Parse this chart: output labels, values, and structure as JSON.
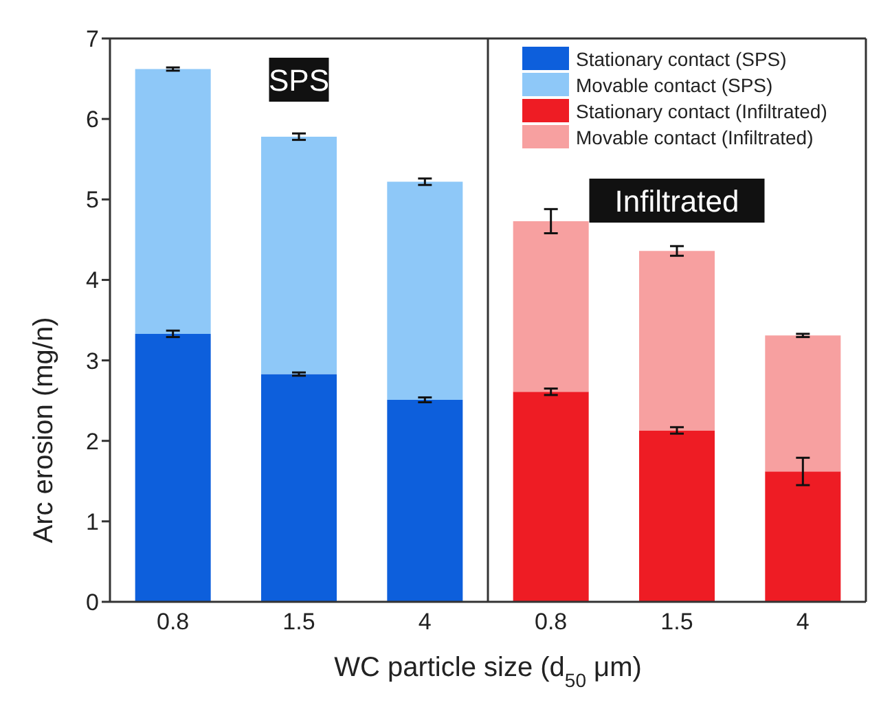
{
  "chart_data": {
    "type": "bar",
    "stacked": true,
    "xlabel": "WC particle size (d$_{50}$ μm)",
    "ylabel": "Arc erosion (mg/n)",
    "categories": [
      "0.8",
      "1.5",
      "4",
      "0.8",
      "1.5",
      "4"
    ],
    "series": [
      {
        "name": "Stationary contact (SPS)",
        "color": "#0d5fdc",
        "values": [
          3.33,
          2.83,
          2.51,
          null,
          null,
          null
        ],
        "errors": [
          0.04,
          0.02,
          0.03,
          null,
          null,
          null
        ]
      },
      {
        "name": "Movable contact (SPS)",
        "color": "#8ec8f8",
        "values": [
          3.29,
          2.95,
          2.71,
          null,
          null,
          null
        ],
        "errors": [
          0.02,
          0.04,
          0.04,
          null,
          null,
          null
        ]
      },
      {
        "name": "Stationary contact (Infiltrated)",
        "color": "#ee1c24",
        "values": [
          null,
          null,
          null,
          2.61,
          2.13,
          1.62
        ],
        "errors": [
          null,
          null,
          null,
          0.04,
          0.04,
          0.17
        ]
      },
      {
        "name": "Movable contact (Infiltrated)",
        "color": "#f7a0a0",
        "values": [
          null,
          null,
          null,
          2.12,
          2.23,
          1.69
        ],
        "errors": [
          null,
          null,
          null,
          0.15,
          0.06,
          0.02
        ]
      }
    ],
    "ylim": [
      0,
      7
    ],
    "yticks": [
      0,
      1,
      2,
      3,
      4,
      5,
      6,
      7
    ],
    "legend": "top right",
    "annotations": [
      "SPS",
      "Infiltrated"
    ]
  }
}
